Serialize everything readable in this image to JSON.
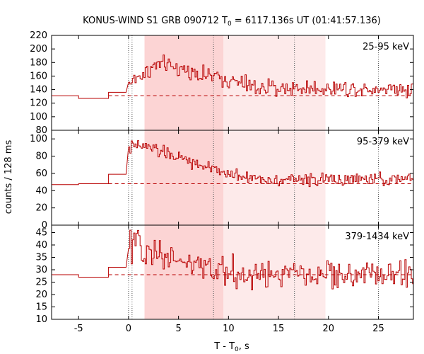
{
  "chart_data": {
    "type": "line",
    "style": "step histogram, 3 stacked panels",
    "title_parts": {
      "prefix": "KONUS-WIND S1 GRB 090712 T",
      "sub": "0",
      "suffix": " = 6117.136s UT (01:41:57.136)"
    },
    "xlabel_parts": {
      "prefix": "T - T",
      "sub": "0",
      "suffix": ", s"
    },
    "ylabel": "counts / 128 ms",
    "xlim": [
      -7.7,
      28.5
    ],
    "xticks": [
      -5,
      0,
      5,
      10,
      15,
      20,
      25
    ],
    "bin_width_s": 0.128,
    "colors": {
      "data": "#b80000",
      "band_dark": "#fcd4d4",
      "band_light": "#fdeaea",
      "vline": "#555555"
    },
    "shaded_intervals": [
      {
        "from": 1.6,
        "to": 9.5,
        "tone": "dark"
      },
      {
        "from": 9.5,
        "to": 19.7,
        "tone": "light"
      }
    ],
    "vertical_lines": [
      0.0,
      0.35,
      8.5,
      16.6,
      25.0
    ],
    "panels": [
      {
        "name": "25-95 keV",
        "band": "25-95 keV",
        "ylim": [
          80,
          220
        ],
        "yticks": [
          80,
          100,
          120,
          140,
          160,
          180,
          200,
          220
        ],
        "background": 131,
        "pre_trigger_steps": [
          {
            "from": -7.7,
            "to": -5.0,
            "value": 131
          },
          {
            "from": -5.0,
            "to": -2.0,
            "value": 127
          },
          {
            "from": -2.0,
            "to": -0.25,
            "value": 136
          }
        ],
        "profile": {
          "rise_at": 0.0,
          "rise_level": 150,
          "peak": 178,
          "peak_time": 3.0,
          "plateau": 157,
          "plateau_end": 9.0,
          "tail": 142,
          "noise": 10
        }
      },
      {
        "name": "95-379 keV",
        "band": "95-379 keV",
        "ylim": [
          0,
          110
        ],
        "yticks": [
          0,
          20,
          40,
          60,
          80,
          100
        ],
        "background": 48,
        "pre_trigger_steps": [
          {
            "from": -7.7,
            "to": -5.0,
            "value": 47
          },
          {
            "from": -5.0,
            "to": -2.0,
            "value": 48
          },
          {
            "from": -2.0,
            "to": -0.25,
            "value": 59
          }
        ],
        "profile": {
          "rise_at": 0.0,
          "rise_level": 90,
          "peak": 92,
          "peak_time": 1.5,
          "plateau": 62,
          "plateau_end": 9.0,
          "tail": 53,
          "noise": 6
        }
      },
      {
        "name": "379-1434 keV",
        "band": "379-1434 keV",
        "ylim": [
          10,
          48
        ],
        "yticks": [
          10,
          15,
          20,
          25,
          30,
          35,
          40,
          45
        ],
        "background": 28,
        "pre_trigger_steps": [
          {
            "from": -7.7,
            "to": -5.0,
            "value": 28
          },
          {
            "from": -5.0,
            "to": -2.0,
            "value": 27
          },
          {
            "from": -2.0,
            "to": -0.25,
            "value": 31
          }
        ],
        "profile": {
          "rise_at": 0.0,
          "rise_level": 38,
          "peak": 40,
          "peak_time": 0.3,
          "plateau": 29,
          "plateau_end": 9.0,
          "tail": 28,
          "noise": 5
        }
      }
    ]
  }
}
